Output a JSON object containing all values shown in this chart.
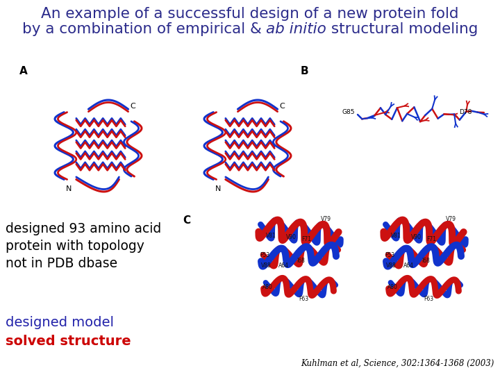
{
  "bg_color": "#ffffff",
  "title_line1": "An example of a successful design of a new protein fold",
  "title_line2_pre": "by a combination of empirical & ",
  "title_line2_italic": "ab initio",
  "title_line2_post": " structural modeling",
  "title_color": "#2b2b8b",
  "title_fontsize": 15.5,
  "label_A": "A",
  "label_B": "B",
  "label_C": "C",
  "label_fontsize": 11,
  "label_color": "#000000",
  "text_body_line1": "designed 93 amino acid",
  "text_body_line2": "protein with topology",
  "text_body_line3": "not in PDB dbase",
  "text_body_color": "#000000",
  "text_body_fontsize": 13.5,
  "text_body_font": "Courier New",
  "legend_model": "designed model",
  "legend_model_color": "#2222aa",
  "legend_solved": "solved structure",
  "legend_solved_color": "#cc0000",
  "legend_fontsize": 14,
  "legend_font": "Comic Sans MS",
  "citation": "Kuhlman et al, Science, 302:1364-1368 (2003)",
  "citation_color": "#000000",
  "citation_fontsize": 8.5,
  "blue": "#1133cc",
  "red": "#cc1111",
  "figwidth": 7.2,
  "figheight": 5.4,
  "dpi": 100
}
